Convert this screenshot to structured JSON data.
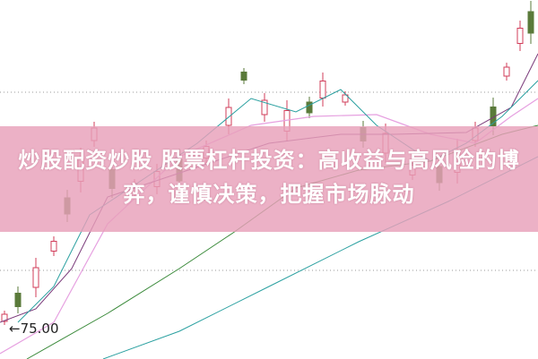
{
  "article": {
    "title": "炒股配资炒股 股票杠杆投资：高收益与高风险的博弈，谨慎决策，把握市场脉动"
  },
  "chart": {
    "price_marker": "←75.00",
    "colors": {
      "up_candle": "#d23c5a",
      "down_candle": "#5a7a3a",
      "ma_purple": "#7a3a7a",
      "ma_pink": "#e6a0e0",
      "ma_teal": "#2aa0a0",
      "ma_green": "#3a8a3a",
      "banner": "#e8a0b9"
    }
  }
}
